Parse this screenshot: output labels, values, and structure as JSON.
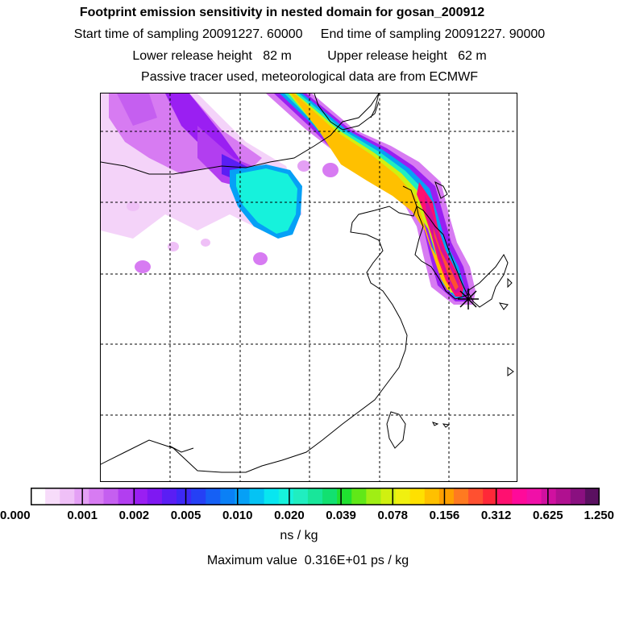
{
  "header": {
    "title": "Footprint emission sensitivity in nested domain for gosan_200912",
    "sampling_line": "Start time of sampling 20091227. 60000     End time of sampling 20091227. 90000",
    "release_line": "Lower release height   82 m          Upper release height   62 m",
    "tracer_line": "Passive tracer used, meteorological data are from ECMWF"
  },
  "colorbar": {
    "unit": "ns / kg",
    "tick_labels": [
      "0.000",
      "0.001",
      "0.002",
      "0.005",
      "0.010",
      "0.020",
      "0.039",
      "0.078",
      "0.156",
      "0.312",
      "0.625",
      "1.250"
    ],
    "colors": [
      "#ffffff",
      "#f7dcfa",
      "#efc0f7",
      "#e4a0f5",
      "#d77bf2",
      "#c55ff0",
      "#b23ef0",
      "#9a1ff2",
      "#7f18f2",
      "#5a1ef4",
      "#3d28f6",
      "#2540f5",
      "#1560f5",
      "#0a80f6",
      "#06a0f6",
      "#05c3f4",
      "#08e6f0",
      "#16f2dc",
      "#20eec0",
      "#18e69a",
      "#12e070",
      "#20e030",
      "#60e818",
      "#a0ee14",
      "#d0f010",
      "#f0f010",
      "#ffe000",
      "#ffc000",
      "#ffa000",
      "#ff7a20",
      "#ff5030",
      "#ff2838",
      "#ff1070",
      "#ff0a9a",
      "#f010a8",
      "#d010a0",
      "#b01090",
      "#8a1080",
      "#5a1060"
    ]
  },
  "footer": {
    "max_value": "Maximum value  0.316E+01 ps / kg"
  }
}
